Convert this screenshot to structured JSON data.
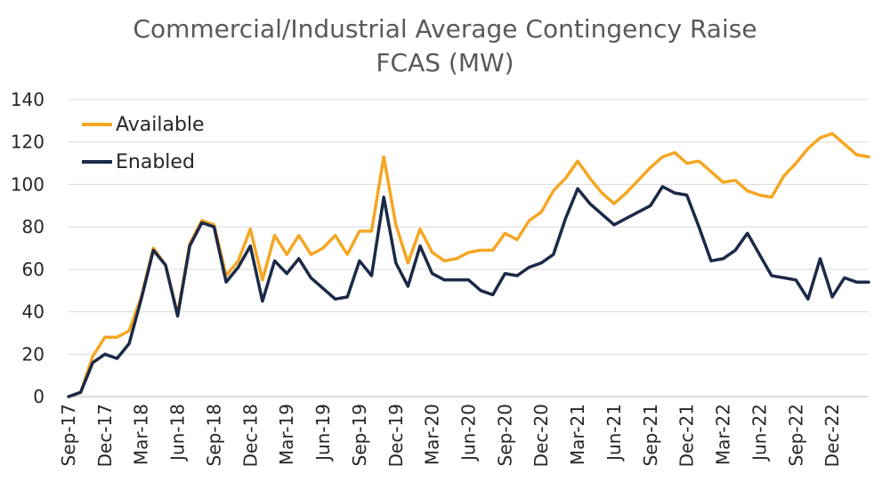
{
  "chart_data": {
    "type": "line",
    "title_lines": [
      "Commercial/Industrial Average Contingency Raise",
      "FCAS (MW)"
    ],
    "xlabel": "",
    "ylabel": "",
    "ylim": [
      0,
      140
    ],
    "yticks": [
      0,
      20,
      40,
      60,
      80,
      100,
      120,
      140
    ],
    "x_tick_labels": [
      "Sep-17",
      "Dec-17",
      "Mar-18",
      "Jun-18",
      "Sep-18",
      "Dec-18",
      "Mar-19",
      "Jun-19",
      "Sep-19",
      "Dec-19",
      "Mar-20",
      "Jun-20",
      "Sep-20",
      "Dec-20",
      "Mar-21",
      "Jun-21",
      "Sep-21",
      "Dec-21",
      "Mar-22",
      "Jun-22",
      "Sep-22",
      "Dec-22"
    ],
    "x": [
      "Sep-17",
      "Oct-17",
      "Nov-17",
      "Dec-17",
      "Jan-18",
      "Feb-18",
      "Mar-18",
      "Apr-18",
      "May-18",
      "Jun-18",
      "Jul-18",
      "Aug-18",
      "Sep-18",
      "Oct-18",
      "Nov-18",
      "Dec-18",
      "Jan-19",
      "Feb-19",
      "Mar-19",
      "Apr-19",
      "May-19",
      "Jun-19",
      "Jul-19",
      "Aug-19",
      "Sep-19",
      "Oct-19",
      "Nov-19",
      "Dec-19",
      "Jan-20",
      "Feb-20",
      "Mar-20",
      "Apr-20",
      "May-20",
      "Jun-20",
      "Jul-20",
      "Aug-20",
      "Sep-20",
      "Oct-20",
      "Nov-20",
      "Dec-20",
      "Jan-21",
      "Feb-21",
      "Mar-21",
      "Apr-21",
      "May-21",
      "Jun-21",
      "Jul-21",
      "Aug-21",
      "Sep-21",
      "Oct-21",
      "Nov-21",
      "Dec-21",
      "Jan-22",
      "Feb-22",
      "Mar-22",
      "Apr-22",
      "May-22",
      "Jun-22",
      "Jul-22",
      "Aug-22",
      "Sep-22",
      "Oct-22",
      "Nov-22",
      "Dec-22",
      "Jan-23",
      "Feb-23",
      "Mar-23"
    ],
    "legend_position": "top-left",
    "grid": true,
    "series": [
      {
        "name": "Available",
        "color": "#F5A623",
        "values": [
          0,
          2,
          19,
          28,
          28,
          31,
          47,
          70,
          62,
          39,
          72,
          83,
          81,
          57,
          64,
          79,
          55,
          76,
          67,
          76,
          67,
          70,
          76,
          67,
          78,
          78,
          113,
          81,
          63,
          79,
          68,
          64,
          65,
          68,
          69,
          69,
          77,
          74,
          83,
          87,
          97,
          103,
          111,
          103,
          96,
          91,
          96,
          102,
          108,
          113,
          115,
          110,
          111,
          106,
          101,
          102,
          97,
          95,
          94,
          104,
          110,
          117,
          122,
          124,
          119,
          114,
          113
        ]
      },
      {
        "name": "Enabled",
        "color": "#1B2A47",
        "values": [
          0,
          2,
          16,
          20,
          18,
          25,
          46,
          69,
          62,
          38,
          71,
          82,
          80,
          54,
          61,
          71,
          45,
          64,
          58,
          65,
          56,
          51,
          46,
          47,
          64,
          57,
          94,
          63,
          52,
          71,
          58,
          55,
          55,
          55,
          50,
          48,
          58,
          57,
          61,
          63,
          67,
          84,
          98,
          91,
          86,
          81,
          84,
          87,
          90,
          99,
          96,
          95,
          80,
          64,
          65,
          69,
          77,
          67,
          57,
          56,
          55,
          46,
          65,
          47,
          56,
          54,
          54
        ]
      }
    ]
  }
}
